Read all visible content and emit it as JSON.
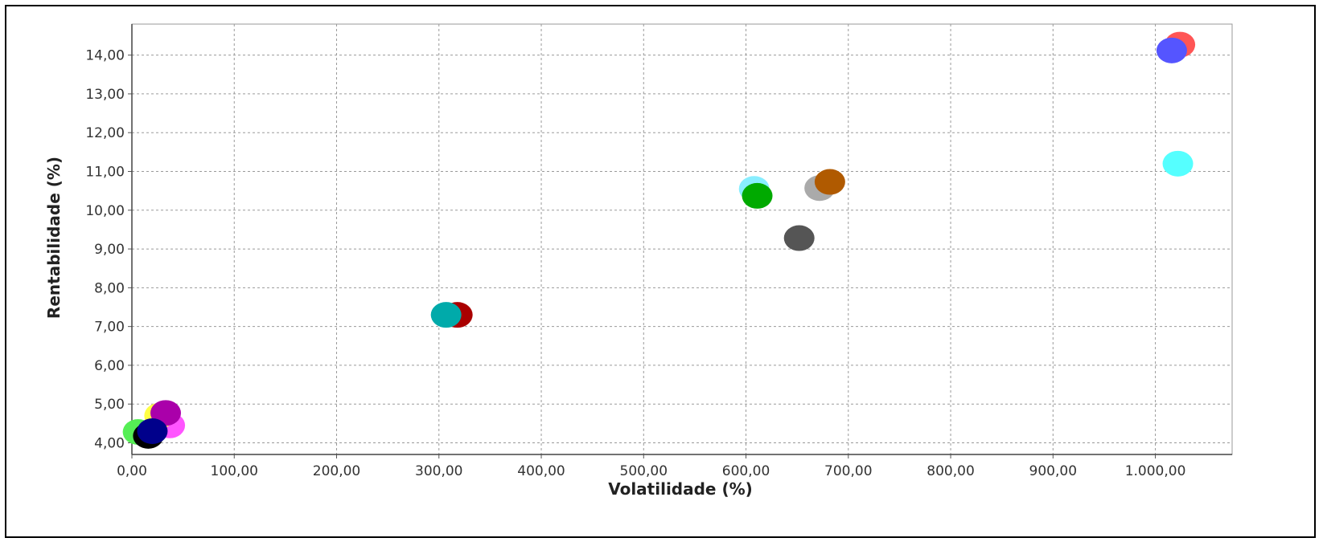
{
  "chart_data": {
    "type": "scatter",
    "title": "",
    "xlabel": "Volatilidade (%)",
    "ylabel": "Rentabilidade (%)",
    "xlim": [
      0,
      1075
    ],
    "ylim": [
      3.7,
      14.8
    ],
    "grid": true,
    "legend": "none",
    "x_ticks": [
      {
        "value": 0,
        "label": "0,00"
      },
      {
        "value": 100,
        "label": "100,00"
      },
      {
        "value": 200,
        "label": "200,00"
      },
      {
        "value": 300,
        "label": "300,00"
      },
      {
        "value": 400,
        "label": "400,00"
      },
      {
        "value": 500,
        "label": "500,00"
      },
      {
        "value": 600,
        "label": "600,00"
      },
      {
        "value": 700,
        "label": "700,00"
      },
      {
        "value": 800,
        "label": "800,00"
      },
      {
        "value": 900,
        "label": "900,00"
      },
      {
        "value": 1000,
        "label": "1.000,00"
      }
    ],
    "y_ticks": [
      {
        "value": 4,
        "label": "4,00"
      },
      {
        "value": 5,
        "label": "5,00"
      },
      {
        "value": 6,
        "label": "6,00"
      },
      {
        "value": 7,
        "label": "7,00"
      },
      {
        "value": 8,
        "label": "8,00"
      },
      {
        "value": 9,
        "label": "9,00"
      },
      {
        "value": 10,
        "label": "10,00"
      },
      {
        "value": 11,
        "label": "11,00"
      },
      {
        "value": 12,
        "label": "12,00"
      },
      {
        "value": 13,
        "label": "13,00"
      },
      {
        "value": 14,
        "label": "14,00"
      }
    ],
    "points": [
      {
        "x": 6,
        "y": 4.28,
        "color": "#55ee55"
      },
      {
        "x": 37,
        "y": 4.45,
        "color": "#ff55ff"
      },
      {
        "x": 27,
        "y": 4.7,
        "color": "#ffff44"
      },
      {
        "x": 33,
        "y": 4.77,
        "color": "#aa00aa"
      },
      {
        "x": 16,
        "y": 4.18,
        "color": "#000000"
      },
      {
        "x": 20,
        "y": 4.3,
        "color": "#00008b"
      },
      {
        "x": 318,
        "y": 7.3,
        "color": "#aa0000"
      },
      {
        "x": 307,
        "y": 7.3,
        "color": "#00aaaa"
      },
      {
        "x": 608,
        "y": 10.55,
        "color": "#88eeff"
      },
      {
        "x": 611,
        "y": 10.37,
        "color": "#00aa00"
      },
      {
        "x": 672,
        "y": 10.57,
        "color": "#aaaaaa"
      },
      {
        "x": 682,
        "y": 10.73,
        "color": "#b05a00"
      },
      {
        "x": 652,
        "y": 9.28,
        "color": "#555555"
      },
      {
        "x": 1024,
        "y": 14.27,
        "color": "#ff5555"
      },
      {
        "x": 1016,
        "y": 14.12,
        "color": "#5555ff"
      },
      {
        "x": 1022,
        "y": 11.2,
        "color": "#55ffff"
      }
    ]
  }
}
